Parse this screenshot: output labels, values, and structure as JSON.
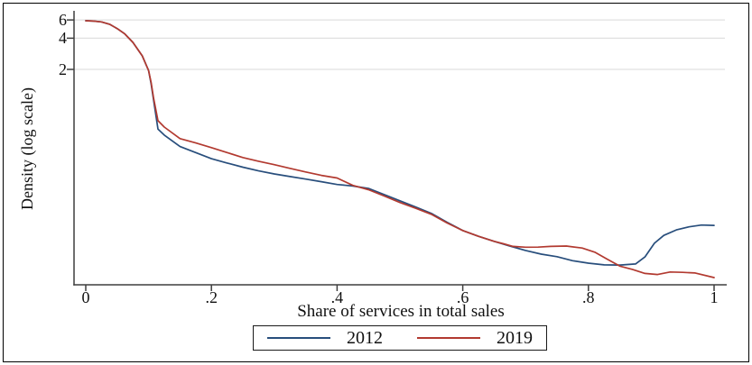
{
  "colors": {
    "series_2012": "#284e7c",
    "series_2019": "#b23a30",
    "axis": "#3f3f3f",
    "grid": "#e0e0e0",
    "text": "#111111",
    "frame_border": "#000000",
    "background": "#ffffff"
  },
  "chart_data": {
    "type": "line",
    "title": "",
    "xlabel": "Share of services in total sales",
    "ylabel": "Density (log scale)",
    "x_scale": "linear",
    "y_scale": "log",
    "xlim": [
      0,
      1
    ],
    "ylim": [
      0.017,
      7.3
    ],
    "grid": true,
    "legend_position": "bottom",
    "x_ticks": [
      0,
      0.2,
      0.4,
      0.6,
      0.8,
      1
    ],
    "x_tick_labels": [
      "0",
      ".2",
      ".4",
      ".6",
      ".8",
      "1"
    ],
    "y_ticks": [
      6,
      4,
      2
    ],
    "y_tick_labels": [
      "6",
      "4",
      "2"
    ],
    "y_gridlines": [
      6,
      4,
      2
    ],
    "series": [
      {
        "name": "2012",
        "color": "#284e7c",
        "points": [
          [
            0,
            5.9
          ],
          [
            0.012,
            5.85
          ],
          [
            0.025,
            5.75
          ],
          [
            0.038,
            5.45
          ],
          [
            0.05,
            4.95
          ],
          [
            0.062,
            4.4
          ],
          [
            0.075,
            3.65
          ],
          [
            0.09,
            2.7
          ],
          [
            0.1,
            1.95
          ],
          [
            0.104,
            1.45
          ],
          [
            0.108,
            1.0
          ],
          [
            0.115,
            0.53
          ],
          [
            0.125,
            0.465
          ],
          [
            0.15,
            0.36
          ],
          [
            0.175,
            0.315
          ],
          [
            0.2,
            0.275
          ],
          [
            0.225,
            0.25
          ],
          [
            0.25,
            0.228
          ],
          [
            0.275,
            0.21
          ],
          [
            0.3,
            0.196
          ],
          [
            0.325,
            0.185
          ],
          [
            0.35,
            0.175
          ],
          [
            0.375,
            0.165
          ],
          [
            0.4,
            0.155
          ],
          [
            0.425,
            0.15
          ],
          [
            0.45,
            0.142
          ],
          [
            0.475,
            0.124
          ],
          [
            0.5,
            0.108
          ],
          [
            0.525,
            0.094
          ],
          [
            0.55,
            0.0815
          ],
          [
            0.575,
            0.067
          ],
          [
            0.6,
            0.0557
          ],
          [
            0.625,
            0.049
          ],
          [
            0.65,
            0.0438
          ],
          [
            0.675,
            0.0395
          ],
          [
            0.7,
            0.0358
          ],
          [
            0.725,
            0.033
          ],
          [
            0.75,
            0.0312
          ],
          [
            0.775,
            0.0285
          ],
          [
            0.8,
            0.027
          ],
          [
            0.825,
            0.026
          ],
          [
            0.85,
            0.0259
          ],
          [
            0.875,
            0.0265
          ],
          [
            0.89,
            0.031
          ],
          [
            0.905,
            0.042
          ],
          [
            0.92,
            0.05
          ],
          [
            0.94,
            0.0565
          ],
          [
            0.96,
            0.0605
          ],
          [
            0.98,
            0.063
          ],
          [
            1,
            0.0625
          ]
        ]
      },
      {
        "name": "2019",
        "color": "#b23a30",
        "points": [
          [
            0,
            5.9
          ],
          [
            0.012,
            5.85
          ],
          [
            0.025,
            5.75
          ],
          [
            0.038,
            5.45
          ],
          [
            0.05,
            4.95
          ],
          [
            0.062,
            4.4
          ],
          [
            0.075,
            3.65
          ],
          [
            0.09,
            2.7
          ],
          [
            0.1,
            1.95
          ],
          [
            0.104,
            1.5
          ],
          [
            0.108,
            1.05
          ],
          [
            0.115,
            0.64
          ],
          [
            0.125,
            0.555
          ],
          [
            0.15,
            0.43
          ],
          [
            0.175,
            0.39
          ],
          [
            0.2,
            0.352
          ],
          [
            0.225,
            0.315
          ],
          [
            0.25,
            0.282
          ],
          [
            0.275,
            0.26
          ],
          [
            0.3,
            0.241
          ],
          [
            0.325,
            0.222
          ],
          [
            0.35,
            0.205
          ],
          [
            0.375,
            0.19
          ],
          [
            0.4,
            0.179
          ],
          [
            0.425,
            0.152
          ],
          [
            0.45,
            0.138
          ],
          [
            0.475,
            0.12
          ],
          [
            0.5,
            0.104
          ],
          [
            0.525,
            0.0915
          ],
          [
            0.55,
            0.0799
          ],
          [
            0.575,
            0.066
          ],
          [
            0.6,
            0.0557
          ],
          [
            0.625,
            0.049
          ],
          [
            0.65,
            0.0438
          ],
          [
            0.665,
            0.0415
          ],
          [
            0.68,
            0.0392
          ],
          [
            0.7,
            0.0385
          ],
          [
            0.72,
            0.0386
          ],
          [
            0.74,
            0.0392
          ],
          [
            0.765,
            0.0395
          ],
          [
            0.79,
            0.0378
          ],
          [
            0.81,
            0.0345
          ],
          [
            0.83,
            0.0295
          ],
          [
            0.85,
            0.0253
          ],
          [
            0.87,
            0.0235
          ],
          [
            0.89,
            0.0215
          ],
          [
            0.91,
            0.021
          ],
          [
            0.93,
            0.0222
          ],
          [
            0.95,
            0.022
          ],
          [
            0.97,
            0.0217
          ],
          [
            1,
            0.0196
          ]
        ]
      }
    ]
  }
}
